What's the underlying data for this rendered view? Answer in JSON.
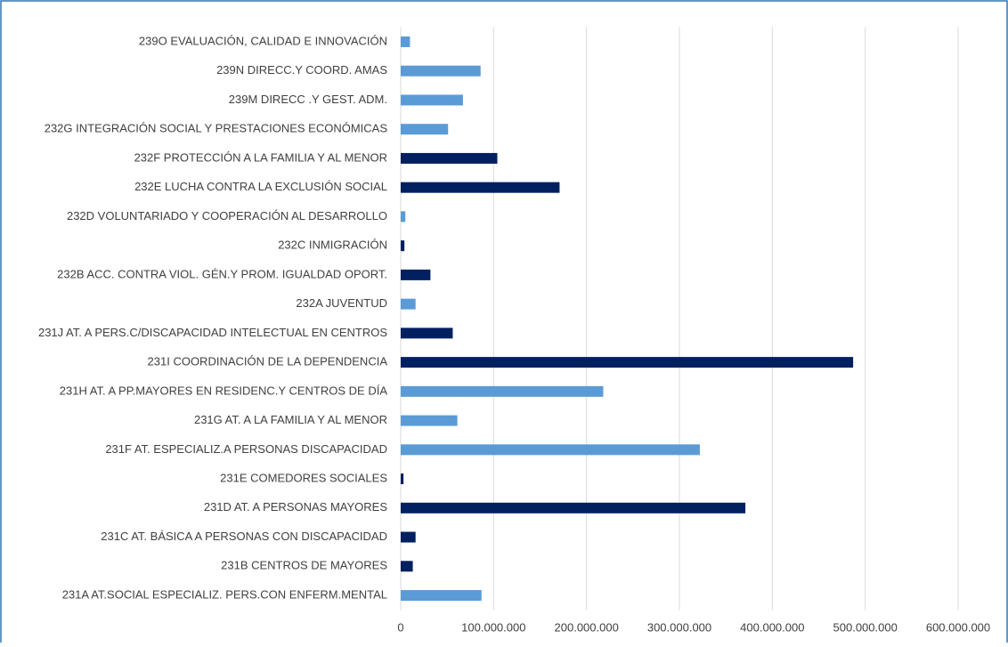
{
  "chart_data": {
    "type": "bar",
    "orientation": "horizontal",
    "categories": [
      "239O EVALUACIÓN, CALIDAD E INNOVACIÓN",
      "239N DIRECC.Y COORD. AMAS",
      "239M DIRECC .Y GEST. ADM.",
      "232G INTEGRACIÓN SOCIAL Y PRESTACIONES ECONÓMICAS",
      "232F PROTECCIÓN A LA FAMILIA Y AL MENOR",
      "232E LUCHA CONTRA LA EXCLUSIÓN SOCIAL",
      "232D VOLUNTARIADO Y COOPERACIÓN AL DESARROLLO",
      "232C INMIGRACIÓN",
      "232B ACC. CONTRA VIOL. GÉN.Y PROM. IGUALDAD OPORT.",
      "232A JUVENTUD",
      "231J AT. A PERS.C/DISCAPACIDAD INTELECTUAL EN CENTROS",
      "231I COORDINACIÓN DE LA DEPENDENCIA",
      "231H AT. A PP.MAYORES EN RESIDENC.Y CENTROS DE DÍA",
      "231G AT. A LA FAMILIA Y AL MENOR",
      "231F AT. ESPECIALIZ.A PERSONAS DISCAPACIDAD",
      "231E COMEDORES SOCIALES",
      "231D AT. A PERSONAS MAYORES",
      "231C AT. BÁSICA A PERSONAS CON DISCAPACIDAD",
      "231B CENTROS DE MAYORES",
      "231A AT.SOCIAL ESPECIALIZ. PERS.CON ENFERM.MENTAL"
    ],
    "values": [
      10000000,
      86000000,
      67000000,
      51000000,
      104000000,
      171000000,
      5000000,
      4000000,
      32000000,
      16000000,
      56000000,
      487000000,
      218000000,
      61000000,
      322000000,
      3000000,
      371000000,
      16000000,
      13000000,
      87000000
    ],
    "colors": [
      "#5b9bd5",
      "#5b9bd5",
      "#5b9bd5",
      "#5b9bd5",
      "#002060",
      "#002060",
      "#5b9bd5",
      "#002060",
      "#002060",
      "#5b9bd5",
      "#002060",
      "#002060",
      "#5b9bd5",
      "#5b9bd5",
      "#5b9bd5",
      "#002060",
      "#002060",
      "#002060",
      "#002060",
      "#5b9bd5"
    ],
    "xlim": [
      0,
      600000000
    ],
    "xticks": [
      0,
      {
        "value": 100000000,
        "label": "100.000.000"
      },
      {
        "value": 200000000,
        "label": "200.000.000"
      },
      {
        "value": 300000000,
        "label": "300.000.000"
      },
      {
        "value": 400000000,
        "label": "400.000.000"
      },
      {
        "value": 500000000,
        "label": "500.000.000"
      },
      {
        "value": 600000000,
        "label": "600.000.000"
      }
    ],
    "grid": true
  }
}
